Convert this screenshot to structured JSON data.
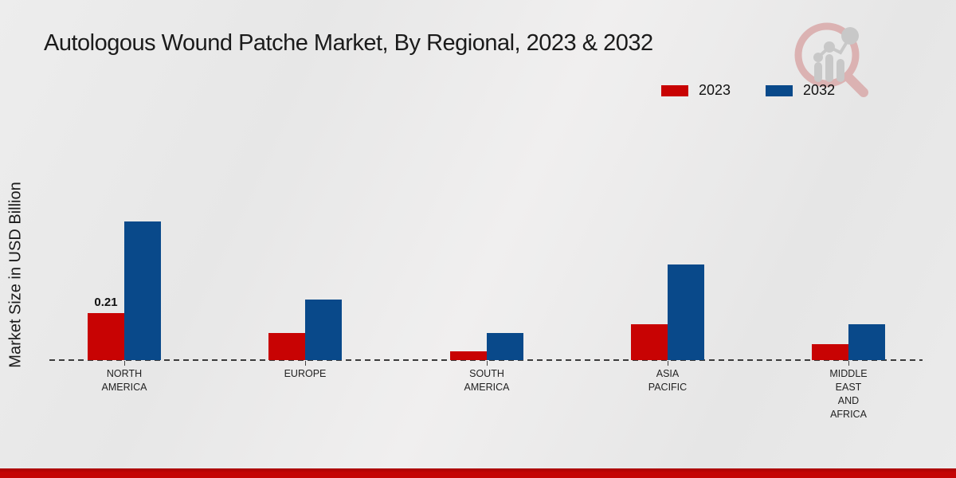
{
  "title": "Autologous Wound Patche Market, By Regional, 2023 & 2032",
  "ylabel": "Market Size in USD Billion",
  "legend": [
    {
      "label": "2023",
      "color": "#c80303"
    },
    {
      "label": "2032",
      "color": "#09498a"
    }
  ],
  "chart_data": {
    "type": "bar",
    "title": "Autologous Wound Patche Market, By Regional, 2023 & 2032",
    "xlabel": "",
    "ylabel": "Market Size in USD Billion",
    "categories": [
      "NORTH AMERICA",
      "EUROPE",
      "SOUTH AMERICA",
      "ASIA PACIFIC",
      "MIDDLE EAST AND AFRICA"
    ],
    "category_lines": [
      [
        "NORTH",
        "AMERICA"
      ],
      [
        "EUROPE"
      ],
      [
        "SOUTH",
        "AMERICA"
      ],
      [
        "ASIA",
        "PACIFIC"
      ],
      [
        "MIDDLE",
        "EAST",
        "AND",
        "AFRICA"
      ]
    ],
    "series": [
      {
        "name": "2023",
        "color": "#c80303",
        "values": [
          0.21,
          0.12,
          0.04,
          0.16,
          0.07
        ]
      },
      {
        "name": "2032",
        "color": "#09498a",
        "values": [
          0.62,
          0.27,
          0.12,
          0.43,
          0.16
        ]
      }
    ],
    "data_labels": [
      {
        "series_index": 0,
        "category_index": 0,
        "text": "0.21"
      }
    ],
    "ylim": [
      0,
      0.7
    ],
    "grid": false,
    "baseline_style": "dashed",
    "legend_position": "top-right"
  },
  "colors": {
    "bar_2023": "#c80303",
    "bar_2032": "#09498a",
    "bottom_bar": "#c40404",
    "background": "#e9e9e9",
    "baseline": "#3b3b3b"
  },
  "icons": {
    "logo": "bar-chart-magnifier-logo-icon"
  }
}
